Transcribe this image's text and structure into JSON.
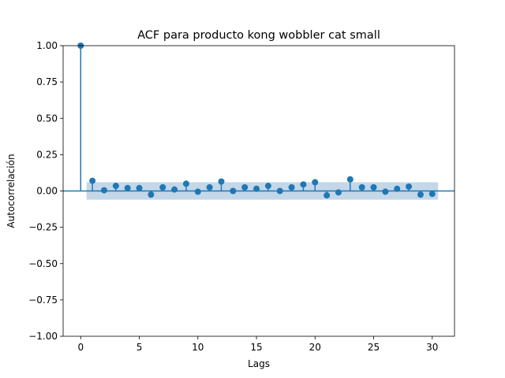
{
  "chart_data": {
    "type": "scatter",
    "title": "ACF para producto kong wobbler cat small",
    "xlabel": "Lags",
    "ylabel": "Autocorrelación",
    "xlim": [
      -1.5,
      31.9
    ],
    "ylim": [
      -1.0,
      1.0
    ],
    "x_ticks": [
      0,
      5,
      10,
      15,
      20,
      25,
      30
    ],
    "x_tick_labels": [
      "0",
      "5",
      "10",
      "15",
      "20",
      "25",
      "30"
    ],
    "y_ticks": [
      1.0,
      0.75,
      0.5,
      0.25,
      0.0,
      -0.25,
      -0.5,
      -0.75,
      -1.0
    ],
    "y_tick_labels": [
      "1.00",
      "0.75",
      "0.50",
      "0.25",
      "0.00",
      "−0.25",
      "−0.50",
      "−0.75",
      "−1.00"
    ],
    "grid": false,
    "series": [
      {
        "x": [
          0,
          1,
          2,
          3,
          4,
          5,
          6,
          7,
          8,
          9,
          10,
          11,
          12,
          13,
          14,
          15,
          16,
          17,
          18,
          19,
          20,
          21,
          22,
          23,
          24,
          25,
          26,
          27,
          28,
          29,
          30
        ],
        "values": [
          1.0,
          0.07,
          0.005,
          0.035,
          0.02,
          0.02,
          -0.025,
          0.025,
          0.01,
          0.05,
          -0.005,
          0.025,
          0.065,
          0.0,
          0.025,
          0.015,
          0.035,
          0.0,
          0.025,
          0.045,
          0.06,
          -0.03,
          -0.01,
          0.08,
          0.025,
          0.025,
          -0.005,
          0.015,
          0.03,
          -0.025,
          -0.02
        ]
      }
    ],
    "confidence_band": {
      "x_range": [
        0.5,
        30.5
      ],
      "upper": 0.06,
      "lower": -0.06
    },
    "colors": {
      "series": "#1f77b4",
      "band": "#c3d7e9",
      "axis": "#000000"
    }
  }
}
